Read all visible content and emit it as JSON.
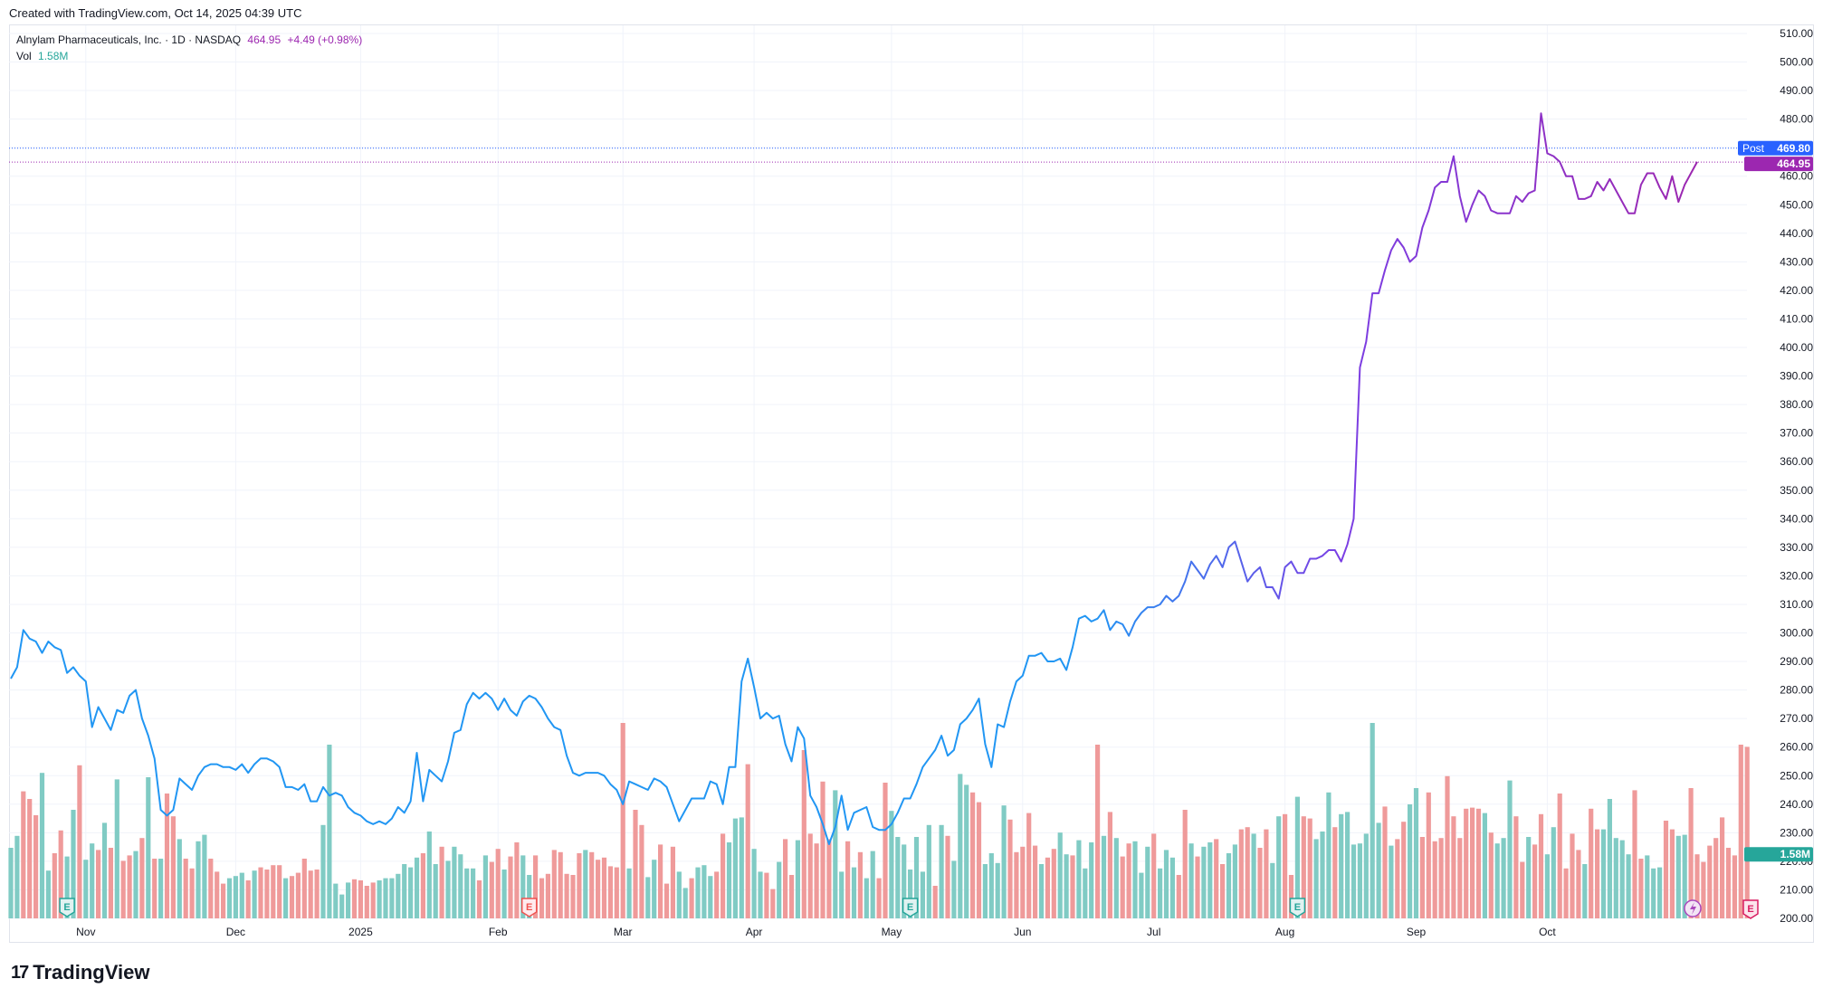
{
  "header": {
    "caption": "Created with TradingView.com, Oct 14, 2025 04:39 UTC"
  },
  "legend": {
    "symbol": "Alnylam Pharmaceuticals, Inc. · 1D · NASDAQ",
    "last_price": "464.95",
    "change": "+4.49 (+0.98%)",
    "volume_label": "Vol",
    "volume_value": "1.58M"
  },
  "price_tags": {
    "post_label": "Post",
    "post_value": "469.80",
    "last_value": "464.95",
    "volume_value": "1.58M"
  },
  "footer": {
    "brand": "TradingView"
  },
  "colors": {
    "line_early": "#2196f3",
    "line_late": "#9c27b0",
    "vol_up": "#80cbc4",
    "vol_down": "#ef9a9a",
    "post_tag": "#2962ff",
    "last_tag": "#9c27b0",
    "vol_tag": "#26a69a",
    "grid": "#f0f3fa",
    "earnings": "#26a69a",
    "earnings_neg": "#ef5350"
  },
  "chart_data": {
    "type": "line",
    "ylim": [
      200,
      515
    ],
    "yticks": [
      "510.00",
      "500.00",
      "490.00",
      "480.00",
      "470.00",
      "460.00",
      "450.00",
      "440.00",
      "430.00",
      "420.00",
      "410.00",
      "400.00",
      "390.00",
      "380.00",
      "370.00",
      "360.00",
      "350.00",
      "340.00",
      "330.00",
      "320.00",
      "310.00",
      "300.00",
      "290.00",
      "280.00",
      "270.00",
      "260.00",
      "250.00",
      "240.00",
      "230.00",
      "220.00",
      "210.00",
      "200.00"
    ],
    "x_tick_labels": [
      "Nov",
      "Dec",
      "2025",
      "Feb",
      "Mar",
      "Apr",
      "May",
      "Jun",
      "Jul",
      "Aug",
      "Sep",
      "Oct"
    ],
    "x_tick_index": [
      12,
      36,
      56,
      78,
      98,
      119,
      141,
      162,
      183,
      204,
      225,
      246
    ],
    "price": [
      284,
      288,
      301,
      298,
      297,
      293,
      297,
      295,
      294,
      286,
      288,
      285,
      283,
      267,
      274,
      270,
      266,
      273,
      272,
      278,
      280,
      270,
      264,
      256,
      238,
      236,
      238,
      249,
      247,
      245,
      250,
      253,
      254,
      254,
      253,
      253,
      252,
      254,
      251,
      254,
      256,
      256,
      255,
      253,
      246,
      246,
      245,
      247,
      241,
      241,
      246,
      243,
      244,
      243,
      239,
      237,
      236,
      234,
      233,
      234,
      233,
      235,
      239,
      237,
      241,
      258,
      241,
      252,
      250,
      248,
      255,
      265,
      266,
      275,
      279,
      277,
      279,
      277,
      273,
      277,
      273,
      271,
      276,
      278,
      277,
      274,
      270,
      267,
      266,
      257,
      251,
      250,
      251,
      251,
      251,
      250,
      247,
      245,
      240,
      248,
      247,
      246,
      245,
      249,
      248,
      246,
      240,
      234,
      238,
      242,
      242,
      242,
      248,
      247,
      240,
      253,
      253,
      283,
      291,
      281,
      270,
      272,
      270,
      271,
      261,
      255,
      267,
      263,
      243,
      239,
      233,
      226,
      232,
      243,
      231,
      237,
      238,
      239,
      232,
      231,
      231,
      233,
      237,
      242,
      242,
      247,
      253,
      256,
      259,
      264,
      257,
      259,
      268,
      270,
      273,
      277,
      261,
      253,
      268,
      267,
      276,
      283,
      285,
      292,
      292,
      293,
      290,
      290,
      291,
      287,
      295,
      305,
      306,
      304,
      305,
      308,
      301,
      304,
      303,
      299,
      304,
      307,
      309,
      309,
      310,
      313,
      311,
      313,
      318,
      325,
      322,
      319,
      324,
      327,
      323,
      330,
      332,
      325,
      318,
      321,
      323,
      316,
      316,
      312,
      323,
      325,
      321,
      321,
      326,
      326,
      327,
      329,
      329,
      325,
      331,
      340,
      393,
      402,
      419,
      419,
      427,
      434,
      438,
      435,
      430,
      432,
      442,
      448,
      456,
      458,
      458,
      467,
      453,
      444,
      450,
      455,
      453,
      448,
      447,
      447,
      447,
      453,
      451,
      454,
      455,
      482,
      468,
      467,
      465,
      460,
      460,
      452,
      452,
      453,
      458,
      455,
      459,
      455,
      451,
      447,
      447,
      457,
      461,
      461,
      456,
      452,
      460,
      451,
      457,
      461,
      465
    ],
    "split_index": 213,
    "volume_millions": [
      0.65,
      0.76,
      1.17,
      1.1,
      0.95,
      1.34,
      0.44,
      0.6,
      0.81,
      0.57,
      1.0,
      1.41,
      0.54,
      0.69,
      0.63,
      0.88,
      0.65,
      1.28,
      0.53,
      0.58,
      0.62,
      0.74,
      1.3,
      0.55,
      0.55,
      1.15,
      0.94,
      0.73,
      0.55,
      0.46,
      0.71,
      0.77,
      0.55,
      0.43,
      0.32,
      0.37,
      0.39,
      0.42,
      0.35,
      0.44,
      0.47,
      0.45,
      0.49,
      0.49,
      0.37,
      0.39,
      0.42,
      0.55,
      0.44,
      0.45,
      0.86,
      1.6,
      0.32,
      0.22,
      0.33,
      0.36,
      0.35,
      0.3,
      0.33,
      0.35,
      0.37,
      0.37,
      0.41,
      0.5,
      0.47,
      0.56,
      0.6,
      0.8,
      0.5,
      0.66,
      0.53,
      0.66,
      0.59,
      0.46,
      0.46,
      0.35,
      0.58,
      0.52,
      0.64,
      0.45,
      0.57,
      0.7,
      0.58,
      0.4,
      0.58,
      0.37,
      0.41,
      0.63,
      0.61,
      0.41,
      0.4,
      0.6,
      0.63,
      0.61,
      0.54,
      0.56,
      0.48,
      0.47,
      1.8,
      0.46,
      1.0,
      0.86,
      0.38,
      0.54,
      0.68,
      0.32,
      0.66,
      0.43,
      0.28,
      0.37,
      0.47,
      0.49,
      0.39,
      0.43,
      0.78,
      0.7,
      0.92,
      0.93,
      1.42,
      0.64,
      0.43,
      0.42,
      0.27,
      0.52,
      0.73,
      0.4,
      0.72,
      1.55,
      0.78,
      0.69,
      1.26,
      0.73,
      1.18,
      0.43,
      0.71,
      0.47,
      0.61,
      0.37,
      0.62,
      0.37,
      1.25,
      0.99,
      0.75,
      0.68,
      0.45,
      0.75,
      0.43,
      0.86,
      0.3,
      0.86,
      0.76,
      0.53,
      1.33,
      1.23,
      1.16,
      1.07,
      0.5,
      0.6,
      0.51,
      1.04,
      0.91,
      0.61,
      0.66,
      0.97,
      0.67,
      0.5,
      0.56,
      0.64,
      0.79,
      0.59,
      0.58,
      0.72,
      0.46,
      0.7,
      1.6,
      0.76,
      0.98,
      0.74,
      0.57,
      0.69,
      0.71,
      0.42,
      0.66,
      0.78,
      0.46,
      0.63,
      0.56,
      0.4,
      1.0,
      0.69,
      0.57,
      0.66,
      0.7,
      0.73,
      0.5,
      0.6,
      0.68,
      0.82,
      0.84,
      0.78,
      0.65,
      0.82,
      0.51,
      0.94,
      0.96,
      0.4,
      1.12,
      0.94,
      0.92,
      0.73,
      0.8,
      1.16,
      0.84,
      0.96,
      0.98,
      0.68,
      0.69,
      0.78,
      1.8,
      0.88,
      1.03,
      0.67,
      0.73,
      0.89,
      1.05,
      1.2,
      0.75,
      1.16,
      0.71,
      0.74,
      1.31,
      0.94,
      0.74,
      1.01,
      1.02,
      1.01,
      0.97,
      0.79,
      0.69,
      0.74,
      1.27,
      0.94,
      0.52,
      0.75,
      0.68,
      0.96,
      0.59,
      0.84,
      1.15,
      0.46,
      0.78,
      0.63,
      0.5,
      1.01,
      0.82,
      0.82,
      1.1,
      0.74,
      0.72,
      0.59,
      1.18,
      0.55,
      0.58,
      0.46,
      0.47,
      0.9,
      0.82,
      0.76,
      0.77,
      1.2,
      0.59,
      0.52,
      0.67,
      0.74,
      0.93,
      0.65,
      0.58,
      1.6,
      1.58
    ],
    "volume_up": [
      true,
      true,
      false,
      false,
      false,
      true,
      true,
      false,
      false,
      true,
      true,
      false,
      true,
      true,
      false,
      true,
      false,
      true,
      false,
      false,
      true,
      false,
      true,
      false,
      true,
      false,
      false,
      true,
      false,
      false,
      true,
      true,
      false,
      false,
      false,
      true,
      true,
      true,
      false,
      true,
      false,
      false,
      false,
      false,
      true,
      false,
      false,
      false,
      false,
      false,
      true,
      true,
      true,
      true,
      true,
      false,
      false,
      false,
      false,
      true,
      true,
      true,
      true,
      true,
      true,
      true,
      false,
      true,
      true,
      false,
      true,
      true,
      true,
      true,
      true,
      false,
      true,
      false,
      false,
      true,
      false,
      false,
      true,
      true,
      false,
      false,
      false,
      false,
      false,
      false,
      false,
      false,
      true,
      false,
      false,
      false,
      false,
      false,
      false,
      true,
      false,
      false,
      true,
      true,
      false,
      false,
      false,
      true,
      true,
      false,
      true,
      true,
      true,
      false,
      false,
      true,
      true,
      true,
      false,
      true,
      true,
      false,
      false,
      true,
      false,
      false,
      true,
      false,
      false,
      false,
      false,
      false,
      true,
      true,
      false,
      true,
      false,
      true,
      true,
      false,
      false,
      true,
      true,
      true,
      true,
      true,
      true,
      true,
      false,
      true,
      false,
      true,
      true,
      true,
      false,
      false,
      true,
      true,
      true,
      true,
      false,
      false,
      false,
      false,
      false,
      true,
      false,
      false,
      true,
      true,
      false,
      true,
      true,
      true,
      false,
      true,
      false,
      true,
      false,
      false,
      true,
      true,
      true,
      false,
      true,
      true,
      true,
      false,
      false,
      true,
      false,
      true,
      true,
      false,
      false,
      true,
      true,
      false,
      false,
      true,
      false,
      false,
      true,
      true,
      false,
      false,
      true,
      false,
      false,
      true,
      true,
      true,
      false,
      true,
      true,
      true,
      true,
      true,
      true,
      true,
      false,
      true,
      false,
      false,
      true,
      true,
      false,
      false,
      false,
      false,
      false,
      false,
      false,
      false,
      false,
      false,
      true,
      false,
      true,
      true,
      true,
      false,
      false,
      true,
      false,
      false,
      true,
      true,
      false,
      false,
      false,
      false,
      true,
      false,
      false,
      true,
      true,
      true,
      true,
      true,
      false,
      false,
      true,
      true,
      true,
      false,
      false,
      true,
      true
    ],
    "earnings": [
      {
        "index": 9,
        "negative": false
      },
      {
        "index": 83,
        "negative": true
      },
      {
        "index": 144,
        "negative": false
      },
      {
        "index": 206,
        "negative": false
      }
    ]
  }
}
